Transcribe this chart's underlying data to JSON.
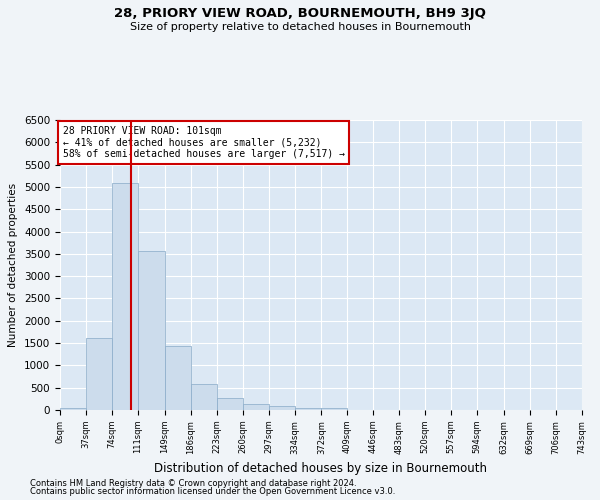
{
  "title1": "28, PRIORY VIEW ROAD, BOURNEMOUTH, BH9 3JQ",
  "title2": "Size of property relative to detached houses in Bournemouth",
  "xlabel": "Distribution of detached houses by size in Bournemouth",
  "ylabel": "Number of detached properties",
  "footnote1": "Contains HM Land Registry data © Crown copyright and database right 2024.",
  "footnote2": "Contains public sector information licensed under the Open Government Licence v3.0.",
  "annotation_title": "28 PRIORY VIEW ROAD: 101sqm",
  "annotation_line1": "← 41% of detached houses are smaller (5,232)",
  "annotation_line2": "58% of semi-detached houses are larger (7,517) →",
  "subject_value": 101,
  "bar_edges": [
    0,
    37,
    74,
    111,
    149,
    186,
    223,
    260,
    297,
    334,
    372,
    409,
    446,
    483,
    520,
    557,
    594,
    632,
    669,
    706,
    743
  ],
  "bar_heights": [
    50,
    1620,
    5080,
    3560,
    1430,
    590,
    270,
    130,
    100,
    45,
    45,
    5,
    5,
    5,
    5,
    0,
    0,
    0,
    0,
    5
  ],
  "bar_color": "#ccdcec",
  "bar_edgecolor": "#88aac8",
  "vline_color": "#cc0000",
  "vline_x": 101,
  "ylim": [
    0,
    6500
  ],
  "yticks": [
    0,
    500,
    1000,
    1500,
    2000,
    2500,
    3000,
    3500,
    4000,
    4500,
    5000,
    5500,
    6000,
    6500
  ],
  "bg_color": "#dce8f4",
  "fig_bg_color": "#f0f4f8",
  "annotation_box_color": "#ffffff",
  "annotation_box_edgecolor": "#cc0000",
  "grid_color": "#ffffff",
  "title1_fontsize": 9.5,
  "title2_fontsize": 8,
  "ylabel_fontsize": 7.5,
  "xlabel_fontsize": 8.5,
  "ytick_fontsize": 7.5,
  "xtick_fontsize": 6,
  "footnote_fontsize": 6,
  "ann_fontsize": 7
}
